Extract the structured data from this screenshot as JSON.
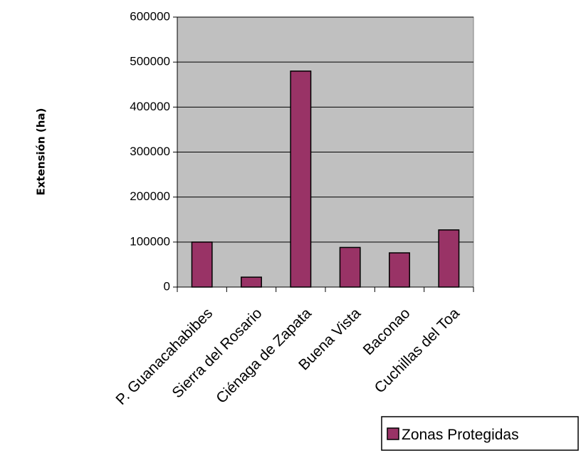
{
  "chart_data": {
    "type": "bar",
    "categories": [
      "P. Guanacahabibes",
      "Sierra del Rosario",
      "Ciénaga de Zapata",
      "Buena Vista",
      "Baconao",
      "Cuchillas del Toa"
    ],
    "series": [
      {
        "name": "Zonas Protegidas",
        "values": [
          100000,
          22000,
          480000,
          88000,
          76000,
          127000
        ]
      }
    ],
    "ylabel": "Extensión (ha)",
    "xlabel": "",
    "title": "",
    "ylim": [
      0,
      600000
    ],
    "yticks": [
      "0",
      "100000",
      "200000",
      "300000",
      "400000",
      "500000",
      "600000"
    ],
    "grid": true,
    "legend_position": "bottom-right",
    "colors": {
      "bar": "#993366",
      "plot_background": "#c0c0c0",
      "gridline": "#000000"
    }
  }
}
